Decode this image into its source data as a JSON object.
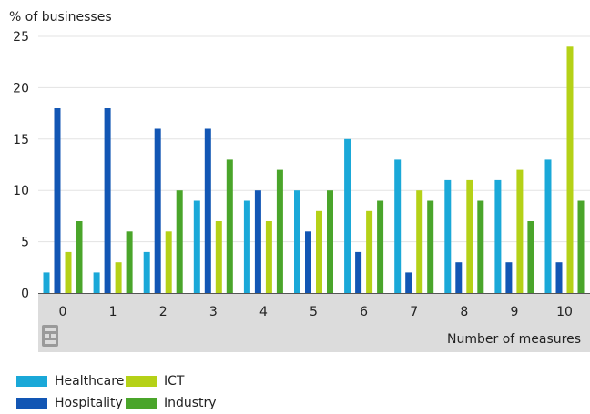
{
  "chart_data": {
    "type": "bar",
    "ylabel": "% of businesses",
    "xlabel": "Number of measures",
    "ylim": [
      0,
      25
    ],
    "yticks": [
      0,
      5,
      10,
      15,
      20,
      25
    ],
    "categories": [
      "0",
      "1",
      "2",
      "3",
      "4",
      "5",
      "6",
      "7",
      "8",
      "9",
      "10"
    ],
    "series": [
      {
        "name": "Healthcare",
        "color": "#1aa8d8",
        "values": [
          2,
          2,
          4,
          9,
          9,
          10,
          15,
          13,
          11,
          11,
          13
        ]
      },
      {
        "name": "Hospitality",
        "color": "#1256b4",
        "values": [
          18,
          18,
          16,
          16,
          10,
          6,
          4,
          2,
          3,
          3,
          3
        ]
      },
      {
        "name": "ICT",
        "color": "#b5d117",
        "values": [
          4,
          3,
          6,
          7,
          7,
          8,
          8,
          10,
          11,
          12,
          24
        ]
      },
      {
        "name": "Industry",
        "color": "#4aa52a",
        "values": [
          7,
          6,
          10,
          13,
          12,
          10,
          9,
          9,
          9,
          7,
          9
        ]
      }
    ],
    "legend_position": "bottom-left",
    "grid": true
  },
  "icons": {
    "logo": "cbs-logo-icon"
  }
}
